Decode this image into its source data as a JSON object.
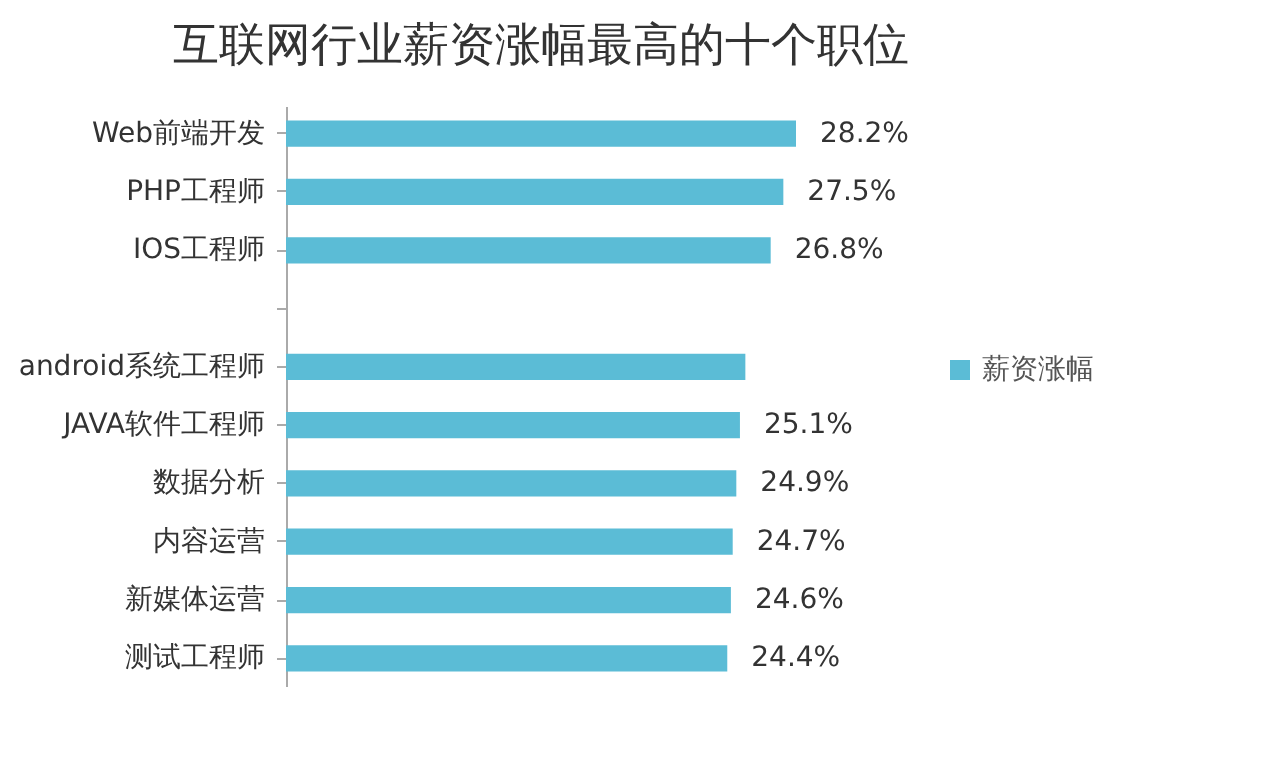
{
  "chart_data": {
    "type": "bar",
    "orientation": "horizontal",
    "title": "互联网行业薪资涨幅最高的十个职位",
    "categories": [
      "Web前端开发",
      "PHP工程师",
      "IOS工程师",
      null,
      "android系统工程师",
      "JAVA软件工程师",
      "数据分析",
      "内容运营",
      "新媒体运营",
      "测试工程师"
    ],
    "series": [
      {
        "name": "薪资涨幅",
        "color": "#5bbcd6",
        "values": [
          28.2,
          27.5,
          26.8,
          null,
          25.4,
          25.1,
          24.9,
          24.7,
          24.6,
          24.4
        ],
        "value_labels": [
          "28.2%",
          "27.5%",
          "26.8%",
          null,
          null,
          "25.1%",
          "24.9%",
          "24.7%",
          "24.6%",
          "24.4%"
        ]
      }
    ],
    "tick_labels": "y",
    "legend": "right"
  }
}
